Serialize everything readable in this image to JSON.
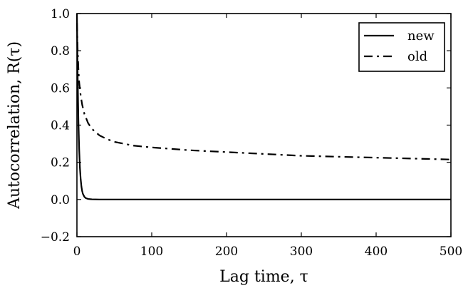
{
  "chart_data": {
    "type": "line",
    "title": "",
    "xlabel": "Lag time, τ",
    "ylabel": "Autocorrelation, R(τ)",
    "xlim": [
      0,
      500
    ],
    "ylim": [
      -0.2,
      1.0
    ],
    "x_ticks": [
      0,
      100,
      200,
      300,
      400,
      500
    ],
    "y_ticks": [
      -0.2,
      0.0,
      0.2,
      0.4,
      0.6,
      0.8,
      1.0
    ],
    "x_tick_labels": [
      "0",
      "100",
      "200",
      "300",
      "400",
      "500"
    ],
    "y_tick_labels": [
      "−0.2",
      "0.0",
      "0.2",
      "0.4",
      "0.6",
      "0.8",
      "1.0"
    ],
    "grid": false,
    "legend_position": "top-right",
    "series": [
      {
        "name": "new",
        "style": "solid",
        "color": "#000000",
        "x": [
          0,
          0.5,
          1,
          1.5,
          2,
          3,
          4,
          5,
          6,
          7,
          8,
          10,
          12,
          15,
          20,
          30,
          50,
          100,
          150,
          200,
          250,
          300,
          350,
          400,
          450,
          500
        ],
        "y": [
          1.0,
          0.82,
          0.66,
          0.53,
          0.42,
          0.27,
          0.17,
          0.11,
          0.07,
          0.045,
          0.03,
          0.014,
          0.007,
          0.003,
          0.001,
          0.0,
          0.0,
          0.0,
          0.0,
          0.0,
          0.0,
          0.0,
          0.0,
          0.0,
          0.0,
          0.0
        ]
      },
      {
        "name": "old",
        "style": "dashdot",
        "color": "#000000",
        "x": [
          0,
          1,
          2,
          3,
          5,
          7,
          10,
          15,
          20,
          30,
          40,
          50,
          75,
          100,
          150,
          200,
          250,
          300,
          350,
          400,
          450,
          500
        ],
        "y": [
          0.95,
          0.8,
          0.7,
          0.63,
          0.56,
          0.51,
          0.46,
          0.41,
          0.38,
          0.345,
          0.325,
          0.31,
          0.29,
          0.28,
          0.265,
          0.255,
          0.245,
          0.235,
          0.23,
          0.225,
          0.22,
          0.215
        ]
      }
    ]
  }
}
